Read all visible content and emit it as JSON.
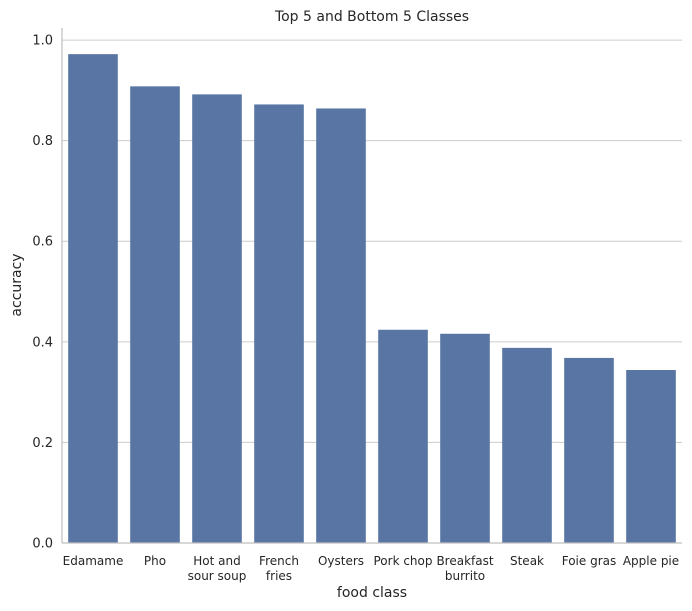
{
  "chart_data": {
    "type": "bar",
    "title": "Top 5 and Bottom 5 Classes",
    "xlabel": "food class",
    "ylabel": "accuracy",
    "categories": [
      [
        "Edamame"
      ],
      [
        "Pho"
      ],
      [
        "Hot and",
        "sour soup"
      ],
      [
        "French",
        "fries"
      ],
      [
        "Oysters"
      ],
      [
        "Pork chop"
      ],
      [
        "Breakfast",
        "burrito"
      ],
      [
        "Steak"
      ],
      [
        "Foie gras"
      ],
      [
        "Apple pie"
      ]
    ],
    "values": [
      0.972,
      0.908,
      0.892,
      0.872,
      0.864,
      0.424,
      0.416,
      0.388,
      0.368,
      0.344
    ],
    "ylim": [
      0,
      1.024
    ],
    "yticks": [
      "0.0",
      "0.2",
      "0.4",
      "0.6",
      "0.8",
      "1.0"
    ],
    "grid": true,
    "bar_color": "#5875a4"
  }
}
